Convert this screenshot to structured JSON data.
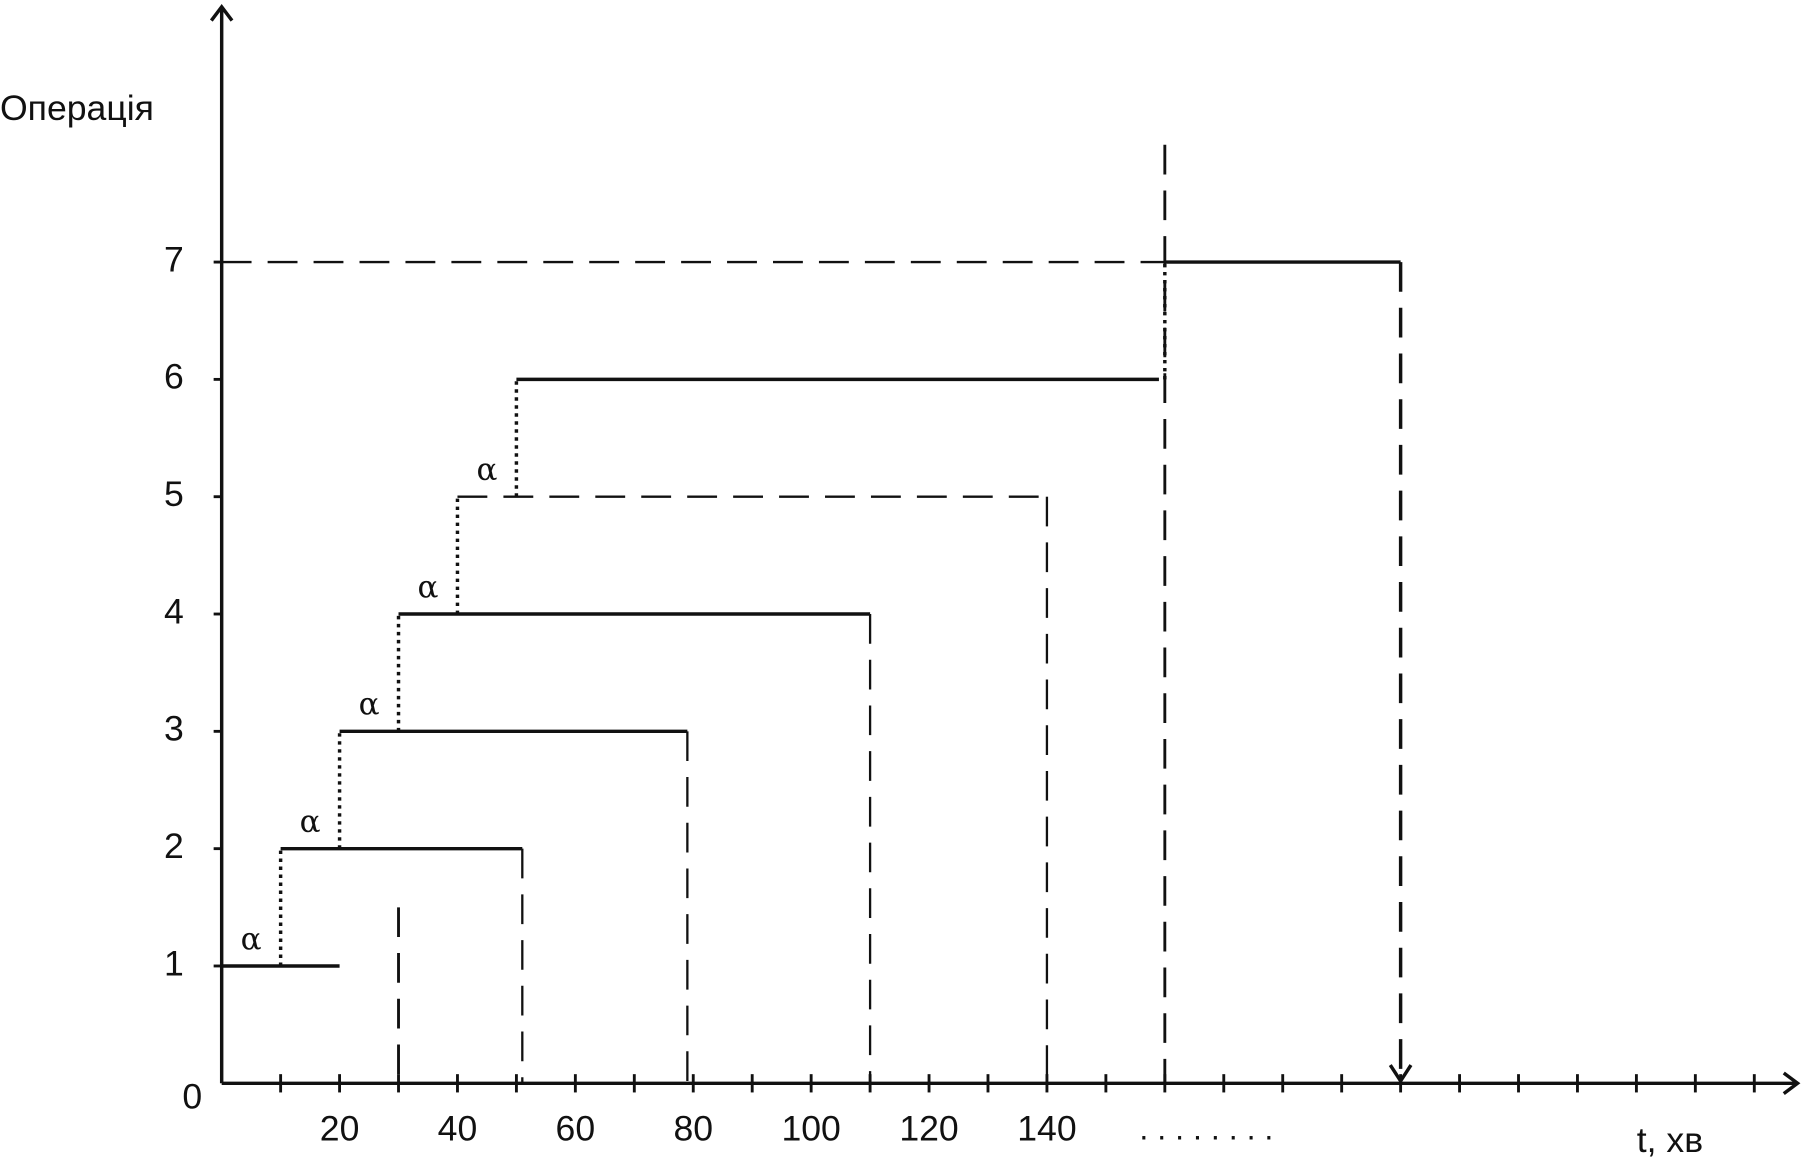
{
  "chart_data": {
    "type": "gantt",
    "y_label": "Операція",
    "x_label": "t, хв",
    "x_more": ". . . . . . . .",
    "xlim": [
      0,
      265
    ],
    "ylim": [
      0,
      9
    ],
    "xticks": [
      20,
      40,
      60,
      80,
      100,
      120,
      140
    ],
    "xminor": [
      10,
      20,
      30,
      40,
      50,
      60,
      70,
      80,
      90,
      100,
      110,
      120,
      130,
      140,
      150,
      160,
      170,
      180,
      190,
      200,
      210,
      220,
      230,
      240,
      250,
      260
    ],
    "yticks": [
      0,
      1,
      2,
      3,
      4,
      5,
      6,
      7
    ],
    "operations": [
      {
        "level": 1,
        "start": 0,
        "end": 20,
        "line": "solid",
        "drop": "none",
        "lag_label": "α"
      },
      {
        "level": 2,
        "start": 10,
        "end": 51,
        "line": "solid",
        "drop": "dashed",
        "lag_label": "α"
      },
      {
        "level": 3,
        "start": 20,
        "end": 79,
        "line": "solid",
        "drop": "dashed",
        "lag_label": "α"
      },
      {
        "level": 4,
        "start": 30,
        "end": 110,
        "line": "solid",
        "drop": "dashed",
        "lag_label": "α"
      },
      {
        "level": 5,
        "start": 40,
        "end": 140,
        "line": "dashed",
        "drop": "dashed",
        "lag_label": "α"
      },
      {
        "level": 6,
        "start": 50,
        "end": 159,
        "line": "solid",
        "drop": "none"
      },
      {
        "level": 7,
        "start": 160,
        "end": 200,
        "line": "solid",
        "drop": "arrow",
        "lead_in": "dashed"
      }
    ],
    "markers": [
      {
        "x": 30,
        "y": [
          0,
          1.5
        ]
      },
      {
        "x": 160,
        "y": [
          0,
          8
        ]
      }
    ]
  }
}
